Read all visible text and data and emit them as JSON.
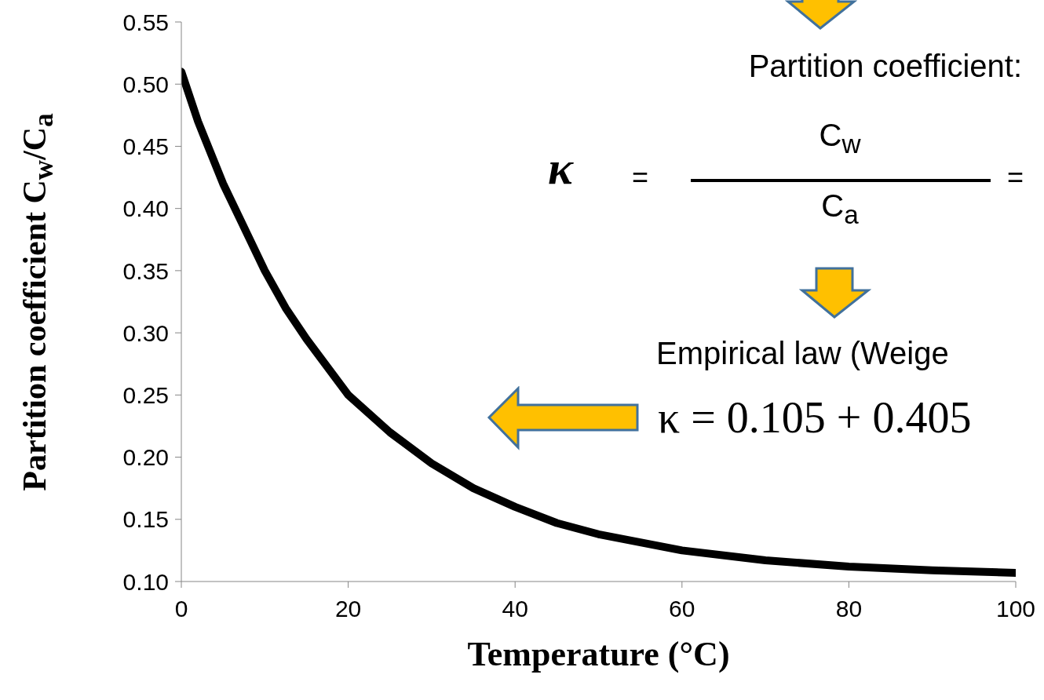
{
  "chart_data": {
    "type": "line",
    "xlabel": "Temperature (°C)",
    "ylabel": "Partition coefficient C$_{w}$/C$_{a}$",
    "x": [
      0,
      2,
      5,
      7.5,
      10,
      12.5,
      15,
      20,
      25,
      30,
      35,
      40,
      45,
      50,
      60,
      70,
      80,
      90,
      100
    ],
    "series": [
      {
        "color": "#000000",
        "values": [
          0.51,
          0.47,
          0.42,
          0.385,
          0.35,
          0.32,
          0.295,
          0.25,
          0.22,
          0.195,
          0.175,
          0.16,
          0.147,
          0.138,
          0.125,
          0.117,
          0.112,
          0.109,
          0.107
        ]
      }
    ],
    "xlim": [
      0,
      100
    ],
    "xticks": [
      0,
      20,
      40,
      60,
      80,
      100
    ],
    "ylim": [
      0.1,
      0.55
    ],
    "yticks": [
      {
        "value": 0.1,
        "label": "0.10"
      },
      {
        "value": 0.15,
        "label": "0.15"
      },
      {
        "value": 0.2,
        "label": "0.20"
      },
      {
        "value": 0.25,
        "label": "0.25"
      },
      {
        "value": 0.3,
        "label": "0.30"
      },
      {
        "value": 0.35,
        "label": "0.35"
      },
      {
        "value": 0.4,
        "label": "0.40"
      },
      {
        "value": 0.45,
        "label": "0.45"
      },
      {
        "value": 0.5,
        "label": "0.50"
      },
      {
        "value": 0.55,
        "label": "0.55"
      }
    ],
    "annotations": [
      "Partition coefficient:",
      "κ",
      "=",
      "C$_{w}$",
      "C$_{a}$",
      "=",
      "Empirical law (Weige",
      "κ = 0.105 + 0.405"
    ]
  }
}
